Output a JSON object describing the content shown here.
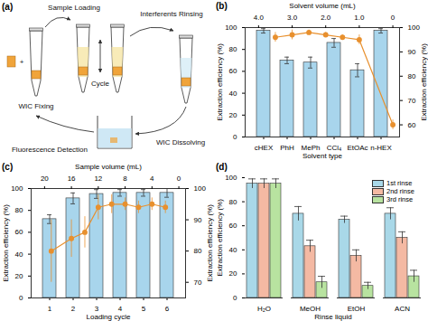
{
  "diagram": {
    "panel": "(a)",
    "plus": "+",
    "steps": {
      "fixing": "WIC Fixing",
      "loading": "Sample Loading",
      "cycle": "Cycle",
      "rinsing": "Interferents Rinsing",
      "dissolving": "WIC Dissolving",
      "detection": "Fluorescence Detection"
    }
  },
  "chart_data": [
    {
      "panel": "(b)",
      "type": "bar",
      "categories": [
        "cHEX",
        "PhH",
        "MePh",
        "CCl₄",
        "EtOAc",
        "n-HEX"
      ],
      "xlabel": "Solvent type",
      "ylabel": "Extraction efficiency (%)",
      "ylim": [
        0,
        100
      ],
      "yticks": [
        0,
        20,
        40,
        60,
        80,
        100
      ],
      "x2label": "Solvent volume (mL)",
      "x2lim": [
        4.4,
        -0.2
      ],
      "x2ticks": [
        {
          "value": 4,
          "label": "4.0"
        },
        {
          "value": 3,
          "label": "3.0"
        },
        {
          "value": 2,
          "label": "2.0"
        },
        {
          "value": 1,
          "label": "1.0"
        },
        0
      ],
      "y2label": "Extraction efficiency (%)",
      "y2lim": [
        55,
        100
      ],
      "y2ticks": [
        60,
        70,
        80,
        90,
        100
      ],
      "series": [
        {
          "type": "bar",
          "color": "#a8d5ec",
          "values": [
            97,
            70,
            68,
            86,
            61,
            97
          ],
          "errors": [
            2,
            3,
            5,
            4,
            6,
            2
          ]
        },
        {
          "type": "line",
          "axis": "y2",
          "color": "#e8902e",
          "marker": "circle",
          "x": [
            3.5,
            3.0,
            2.5,
            2.0,
            1.5,
            1.0,
            0
          ],
          "values": [
            96,
            97,
            98,
            97,
            96,
            95,
            60
          ],
          "errors": [
            2,
            2,
            1,
            1,
            1,
            2,
            2
          ]
        }
      ]
    },
    {
      "panel": "(c)",
      "type": "bar",
      "categories": [
        1,
        2,
        3,
        4,
        5,
        6
      ],
      "xlabel": "Loading cycle",
      "ylabel": "Extraction efficiency (%)",
      "ylim": [
        0,
        100
      ],
      "yticks": [
        0,
        20,
        40,
        60,
        80,
        100
      ],
      "x2label": "Sample volume (mL)",
      "x2lim": [
        22,
        -1
      ],
      "x2ticks": [
        20,
        16,
        12,
        8,
        4,
        0
      ],
      "y2label": "Extraction efficiency (%)",
      "y2lim": [
        65,
        100
      ],
      "y2ticks": [
        70,
        80,
        90,
        100
      ],
      "series": [
        {
          "type": "bar",
          "color": "#a8d5ec",
          "values": [
            72,
            91,
            95,
            96,
            96,
            96
          ],
          "errors": [
            4,
            5,
            4,
            3,
            3,
            4
          ]
        },
        {
          "type": "line",
          "axis": "y2",
          "color": "#e8902e",
          "marker": "circle",
          "x": [
            19,
            16,
            14,
            12,
            10,
            8,
            6,
            4,
            2
          ],
          "values": [
            80,
            84,
            86,
            94,
            95,
            95,
            94,
            95,
            94
          ],
          "errors": [
            10,
            6,
            5,
            4,
            3,
            2,
            2,
            2,
            2
          ]
        }
      ]
    },
    {
      "panel": "(d)",
      "type": "bar",
      "categories": [
        "H₂O",
        "MeOH",
        "EtOH",
        "ACN"
      ],
      "xlabel": "Rinse liquid",
      "ylabel": "Extraction efficiency (%)",
      "ylim": [
        0,
        100
      ],
      "yticks": [
        0,
        20,
        40,
        60,
        80,
        100
      ],
      "legend": "top-right",
      "series": [
        {
          "name": "1st rinse",
          "color": "#a9d8e8",
          "values": [
            95,
            70,
            65,
            70
          ],
          "errors": [
            4,
            6,
            3,
            5
          ]
        },
        {
          "name": "2nd rinse",
          "color": "#f4b9a3",
          "values": [
            95,
            43,
            35,
            50
          ],
          "errors": [
            4,
            5,
            5,
            5
          ]
        },
        {
          "name": "3rd rinse",
          "color": "#b8e3a0",
          "values": [
            95,
            13,
            10,
            18
          ],
          "errors": [
            4,
            5,
            3,
            5
          ]
        }
      ]
    }
  ]
}
